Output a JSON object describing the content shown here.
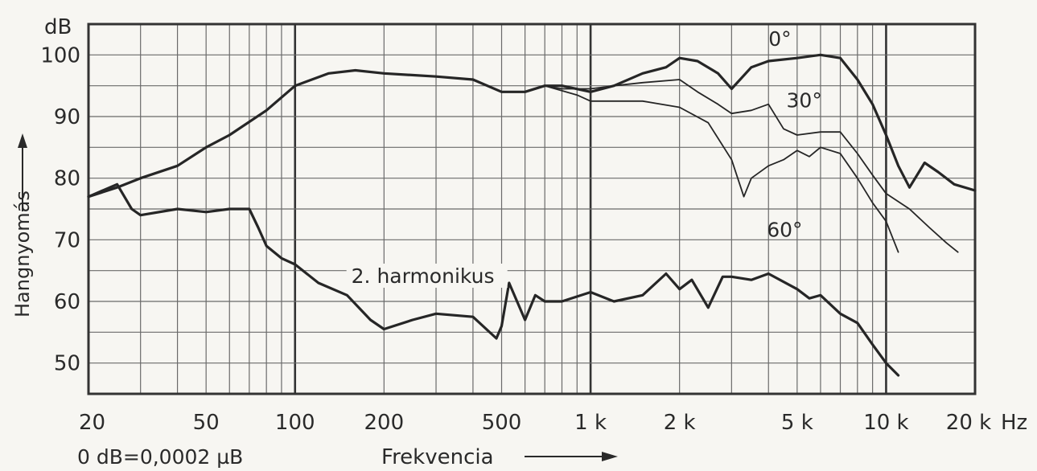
{
  "chart_data": {
    "type": "line",
    "title": "",
    "xlabel": "Frekvencia",
    "ylabel": "Hangnyomás",
    "y_unit": "dB",
    "x_unit": "Hz",
    "reference_note": "0 dB=0,0002 µB",
    "x_scale": "log",
    "xlim": [
      20,
      20000
    ],
    "ylim": [
      45,
      105
    ],
    "grid": true,
    "x_ticks": [
      {
        "value": 20,
        "label": "20"
      },
      {
        "value": 50,
        "label": "50"
      },
      {
        "value": 100,
        "label": "100"
      },
      {
        "value": 200,
        "label": "200"
      },
      {
        "value": 500,
        "label": "500"
      },
      {
        "value": 1000,
        "label": "1 k"
      },
      {
        "value": 2000,
        "label": "2 k"
      },
      {
        "value": 5000,
        "label": "5 k"
      },
      {
        "value": 10000,
        "label": "10 k"
      },
      {
        "value": 20000,
        "label": "20 k"
      }
    ],
    "y_ticks": [
      50,
      60,
      70,
      80,
      90,
      100
    ],
    "series": [
      {
        "name": "0°",
        "label_at": [
          4000,
          101.5
        ],
        "x": [
          20,
          25,
          30,
          40,
          50,
          60,
          80,
          100,
          130,
          160,
          200,
          300,
          400,
          500,
          600,
          700,
          800,
          1000,
          1200,
          1500,
          1800,
          2000,
          2300,
          2700,
          3000,
          3500,
          4000,
          5000,
          6000,
          7000,
          8000,
          9000,
          10000,
          11000,
          12000,
          13500,
          15000,
          17000,
          20000
        ],
        "y": [
          77,
          78.5,
          80,
          82,
          85,
          87,
          91,
          95,
          97,
          97.5,
          97,
          96.5,
          96,
          94,
          94,
          95,
          95,
          94,
          95,
          97,
          98,
          99.5,
          99,
          97,
          94.5,
          98,
          99,
          99.5,
          100,
          99.5,
          96,
          92,
          87,
          82,
          78.5,
          82.5,
          81,
          79,
          78
        ]
      },
      {
        "name": "30°",
        "label_at": [
          4600,
          91.5
        ],
        "x": [
          700,
          800,
          1000,
          1200,
          1500,
          2000,
          2300,
          2700,
          3000,
          3500,
          4000,
          4500,
          5000,
          6000,
          7000,
          8000,
          9000,
          10000,
          12000,
          14000,
          16000,
          17500
        ],
        "y": [
          95,
          94.5,
          94.5,
          95,
          95.5,
          96,
          94,
          92,
          90.5,
          91,
          92,
          88,
          87,
          87.5,
          87.5,
          84,
          80.5,
          77.5,
          75,
          72,
          69.5,
          68
        ]
      },
      {
        "name": "60°",
        "label_at": [
          3950,
          70.5
        ],
        "x": [
          700,
          900,
          1000,
          1200,
          1500,
          2000,
          2500,
          3000,
          3300,
          3500,
          4000,
          4500,
          5000,
          5500,
          6000,
          7000,
          8000,
          9000,
          10000,
          11000
        ],
        "y": [
          95,
          93.5,
          92.5,
          92.5,
          92.5,
          91.5,
          89,
          83,
          77,
          80,
          82,
          83,
          84.5,
          83.5,
          85,
          84,
          80,
          76,
          73,
          68
        ]
      },
      {
        "name": "2. harmonikus",
        "label_at": [
          155,
          63
        ],
        "x": [
          20,
          25,
          28,
          30,
          40,
          50,
          60,
          70,
          75,
          80,
          90,
          100,
          120,
          150,
          180,
          200,
          250,
          300,
          400,
          480,
          500,
          530,
          600,
          650,
          700,
          800,
          1000,
          1200,
          1500,
          1800,
          2000,
          2200,
          2500,
          2800,
          3000,
          3500,
          4000,
          5000,
          5500,
          6000,
          7000,
          8000,
          9000,
          10000,
          11000
        ],
        "y": [
          77,
          79,
          75,
          74,
          75,
          74.5,
          75,
          75,
          72,
          69,
          67,
          66,
          63,
          61,
          57,
          55.5,
          57,
          58,
          57.5,
          54,
          56,
          63,
          57,
          61,
          60,
          60,
          61.5,
          60,
          61,
          64.5,
          62,
          63.5,
          59,
          64,
          64,
          63.5,
          64.5,
          62,
          60.5,
          61,
          58,
          56.5,
          53,
          50,
          48
        ]
      }
    ]
  }
}
